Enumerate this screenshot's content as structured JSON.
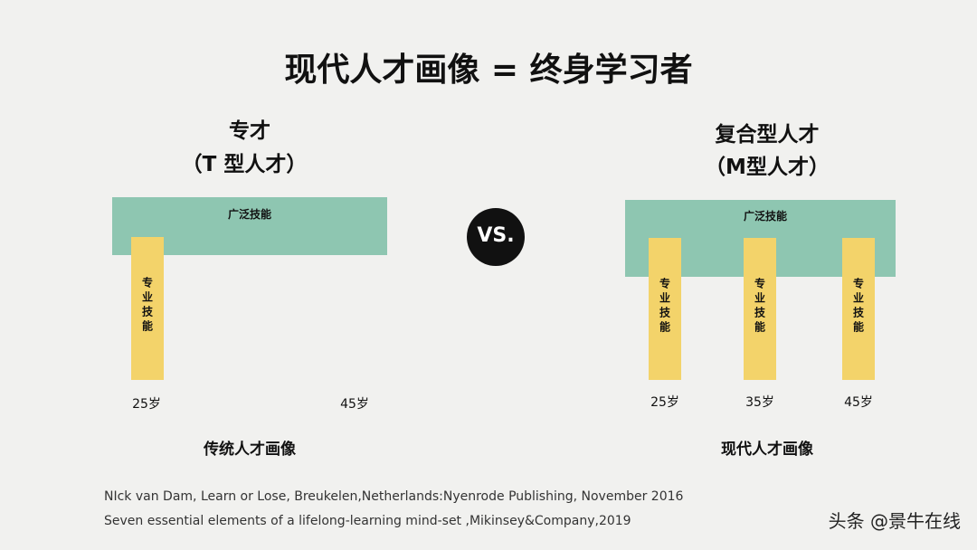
{
  "title": "现代人才画像 = 终身学习者",
  "left": {
    "heading": "专才",
    "subheading": "（T 型人才）",
    "broad_label": "广泛技能",
    "pillars": [
      {
        "label": "专业技能"
      }
    ],
    "ages": [
      "25岁",
      "45岁"
    ],
    "caption": "传统人才画像"
  },
  "vs": "VS.",
  "right": {
    "heading": "复合型人才",
    "subheading": "（M型人才）",
    "broad_label": "广泛技能",
    "pillars": [
      {
        "label": "专业技能"
      },
      {
        "label": "专业技能"
      },
      {
        "label": "专业技能"
      }
    ],
    "ages": [
      "25岁",
      "35岁",
      "45岁"
    ],
    "caption": "现代人才画像"
  },
  "references": [
    "NIck van Dam, Learn or Lose, Breukelen,Netherlands:Nyenrode Publishing, November 2016",
    "Seven essential elements of a lifelong-learning mind-set ,Mikinsey&Company,2019"
  ],
  "watermark": "头条 @景牛在线"
}
